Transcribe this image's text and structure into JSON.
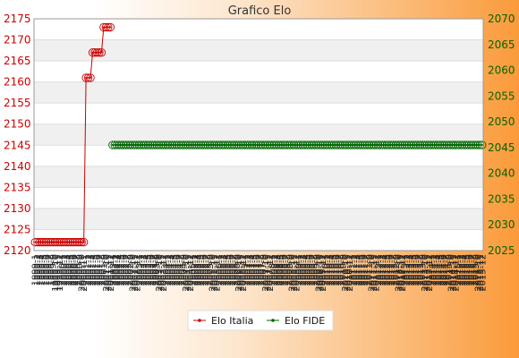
{
  "chart_data": {
    "type": "line",
    "title": "Grafico Elo",
    "xlabel": "",
    "ylabel": "",
    "grid": true,
    "legend_position": "bottom",
    "y_left": {
      "range": [
        2120,
        2175
      ],
      "ticks": [
        "2120",
        "2125",
        "2130",
        "2135",
        "2140",
        "2145",
        "2150",
        "2155",
        "2160",
        "2165",
        "2170",
        "2175"
      ],
      "color": "#cc0000"
    },
    "y_right": {
      "range": [
        2025,
        2070
      ],
      "ticks": [
        "2025",
        "2030",
        "2035",
        "2040",
        "2045",
        "2050",
        "2055",
        "2060",
        "2065",
        "2070"
      ],
      "color": "#006600"
    },
    "categories": [
      "1999-1",
      "1999-2",
      "1999-3",
      "1999-4",
      "1999-5",
      "1999-6",
      "1999-7",
      "1999-8",
      "1999-9",
      "1999-10",
      "1999-11",
      "1999-12",
      "2000-1",
      "2000-2",
      "2000-3",
      "2000-4",
      "2000-5",
      "2000-6",
      "2000-7",
      "2000-8",
      "2000-9",
      "2000-10",
      "2000-11",
      "2001-1",
      "2001-2",
      "2001-3",
      "2001-4",
      "2001-5",
      "2001-6",
      "2001-7",
      "2001-8",
      "2001-9",
      "2001-10",
      "2001-11",
      "2001-12",
      "2002-1",
      "2002-2",
      "2002-3",
      "2002-4",
      "2002-5",
      "2002-6",
      "2002-7",
      "2002-8",
      "2002-9",
      "2002-10",
      "2002-11",
      "2002-12",
      "2003-1",
      "2003-2",
      "2003-3",
      "2003-4",
      "2003-5",
      "2003-6",
      "2003-7",
      "2003-8",
      "2003-9",
      "2003-10",
      "2003-11",
      "2003-12",
      "2004-1",
      "2004-2",
      "2004-3",
      "2004-4",
      "2004-5",
      "2004-6",
      "2004-7",
      "2004-8",
      "2004-9",
      "2004-10",
      "2004-11",
      "2004-12",
      "2005-1",
      "2005-2",
      "2005-3",
      "2005-4",
      "2005-5",
      "2005-6",
      "2005-7",
      "2005-8",
      "2005-9",
      "2005-10",
      "2005-11",
      "2005-12",
      "2006-1",
      "2006-2",
      "2006-3",
      "2006-4",
      "2006-5",
      "2006-6",
      "2006-7",
      "2006-8",
      "2006-9",
      "2006-10",
      "2006-11",
      "2006-12",
      "2007-1",
      "2007-2",
      "2007-3",
      "2007-4",
      "2007-5",
      "2007-6",
      "2007-7",
      "2007-8",
      "2007-9",
      "2007-10",
      "2007-11",
      "2007-12",
      "2008-1",
      "2008-2",
      "2008-3",
      "2008-4",
      "2008-5",
      "2008-6",
      "2008-7",
      "2008-8",
      "2008-9",
      "2008-10",
      "2008-11",
      "2008-12",
      "2009-1",
      "2009-2",
      "2009-3",
      "2009-4",
      "2009-5",
      "2009-6",
      "2009-7",
      "2009-8",
      "2009-9",
      "2009-10",
      "2009-11",
      "2009-12",
      "2010-1",
      "2010-2",
      "2010-3",
      "2010-4",
      "2010-5",
      "2010-6",
      "2010-7",
      "2010-8",
      "2010-9",
      "2010-10",
      "2010-11",
      "2010-12",
      "2011-1",
      "2011-2",
      "2011-3",
      "2011-4",
      "2011-5",
      "2011-6",
      "2011-7",
      "2011-8",
      "2011-9",
      "2011-10",
      "2011-11",
      "2011-12",
      "2012-1",
      "2012-2",
      "2012-3",
      "2012-4",
      "2012-5",
      "2012-6",
      "2012-7",
      "2012-8",
      "2012-9",
      "2012-10",
      "2012-11",
      "2012-12",
      "2013-1",
      "2013-2",
      "2013-3",
      "2013-4",
      "2013-5",
      "2013-6",
      "2013-7",
      "2013-8",
      "2013-9",
      "2013-10",
      "2013-11",
      "2013-12",
      "2014-1",
      "2014-2",
      "2014-3",
      "2014-4",
      "2014-5",
      "2014-6",
      "2014-7",
      "2014-8",
      "2014-9",
      "2014-10",
      "2014-11",
      "2014-12",
      "2015-1",
      "2015-2",
      "2015-3",
      "2015-4",
      "2015-5",
      "2015-6",
      "2015-7",
      "2015-8",
      "2015-9",
      "2015-10",
      "2015-11",
      "2015-12"
    ],
    "series": [
      {
        "name": "Elo Italia",
        "axis": "left",
        "color": "#cc0000",
        "values": [
          2122,
          2122,
          2122,
          2122,
          2122,
          2122,
          2122,
          2122,
          2122,
          2122,
          2122,
          2122,
          2122,
          2122,
          2122,
          2122,
          2122,
          2122,
          2122,
          2122,
          2122,
          2122,
          2122,
          2161,
          2161,
          2161,
          2167,
          2167,
          2167,
          2167,
          2167,
          2173,
          2173,
          2173,
          2173,
          null,
          null,
          null,
          null,
          null,
          null,
          null,
          null,
          null,
          null,
          null,
          null,
          null,
          null,
          null,
          null,
          null,
          null,
          null,
          null,
          null,
          null,
          null,
          null,
          null,
          null,
          null,
          null,
          null,
          null,
          null,
          null,
          null,
          null,
          null,
          null,
          null,
          null,
          null,
          null,
          null,
          null,
          null,
          null,
          null,
          null,
          null,
          null,
          null,
          null,
          null,
          null,
          null,
          null,
          null,
          null,
          null,
          null,
          null,
          null,
          null,
          null,
          null,
          null,
          null,
          null,
          null,
          null,
          null,
          null,
          null,
          null,
          null,
          null,
          null,
          null,
          null,
          null,
          null,
          null,
          null,
          null,
          null,
          null,
          null,
          null,
          null,
          null,
          null,
          null,
          null,
          null,
          null,
          null,
          null,
          null,
          null,
          null,
          null,
          null,
          null,
          null,
          null,
          null,
          null,
          null,
          null,
          null,
          null,
          null,
          null,
          null,
          null,
          null,
          null,
          null,
          null,
          null,
          null,
          null,
          null,
          null,
          null,
          null,
          null,
          null,
          null,
          null,
          null,
          null,
          null,
          null,
          null,
          null,
          null,
          null,
          null,
          null,
          null,
          null,
          null,
          null,
          null,
          null,
          null,
          null,
          null,
          null,
          null,
          null,
          null,
          null,
          null,
          null,
          null,
          null,
          null,
          null,
          null,
          null,
          null,
          null,
          null,
          null,
          null,
          null,
          null,
          null
        ]
      },
      {
        "name": "Elo FIDE",
        "axis": "right",
        "color": "#006600",
        "values": [
          null,
          null,
          null,
          null,
          null,
          null,
          null,
          null,
          null,
          null,
          null,
          null,
          null,
          null,
          null,
          null,
          null,
          null,
          null,
          null,
          null,
          null,
          null,
          null,
          null,
          null,
          null,
          null,
          null,
          null,
          null,
          null,
          null,
          null,
          null,
          2045.5,
          2045.5,
          2045.5,
          2045.5,
          2045.5,
          2045.5,
          2045.5,
          2045.5,
          2045.5,
          2045.5,
          2045.5,
          2045.5,
          2045.5,
          2045.5,
          2045.5,
          2045.5,
          2045.5,
          2045.5,
          2045.5,
          2045.5,
          2045.5,
          2045.5,
          2045.5,
          2045.5,
          2045.5,
          2045.5,
          2045.5,
          2045.5,
          2045.5,
          2045.5,
          2045.5,
          2045.5,
          2045.5,
          2045.5,
          2045.5,
          2045.5,
          2045.5,
          2045.5,
          2045.5,
          2045.5,
          2045.5,
          2045.5,
          2045.5,
          2045.5,
          2045.5,
          2045.5,
          2045.5,
          2045.5,
          2045.5,
          2045.5,
          2045.5,
          2045.5,
          2045.5,
          2045.5,
          2045.5,
          2045.5,
          2045.5,
          2045.5,
          2045.5,
          2045.5,
          2045.5,
          2045.5,
          2045.5,
          2045.5,
          2045.5,
          2045.5,
          2045.5,
          2045.5,
          2045.5,
          2045.5,
          2045.5,
          2045.5,
          2045.5,
          2045.5,
          2045.5,
          2045.5,
          2045.5,
          2045.5,
          2045.5,
          2045.5,
          2045.5,
          2045.5,
          2045.5,
          2045.5,
          2045.5,
          2045.5,
          2045.5,
          2045.5,
          2045.5,
          2045.5,
          2045.5,
          2045.5,
          2045.5,
          2045.5,
          2045.5,
          2045.5,
          2045.5,
          2045.5,
          2045.5,
          2045.5,
          2045.5,
          2045.5,
          2045.5,
          2045.5,
          2045.5,
          2045.5,
          2045.5,
          2045.5,
          2045.5,
          2045.5,
          2045.5,
          2045.5,
          2045.5,
          2045.5,
          2045.5,
          2045.5,
          2045.5,
          2045.5,
          2045.5,
          2045.5,
          2045.5,
          2045.5,
          2045.5,
          2045.5,
          2045.5,
          2045.5,
          2045.5,
          2045.5,
          2045.5,
          2045.5,
          2045.5,
          2045.5,
          2045.5,
          2045.5,
          2045.5,
          2045.5,
          2045.5,
          2045.5,
          2045.5,
          2045.5,
          2045.5,
          2045.5,
          2045.5,
          2045.5,
          2045.5,
          2045.5,
          2045.5,
          2045.5,
          2045.5,
          2045.5,
          2045.5,
          2045.5,
          2045.5,
          2045.5,
          2045.5,
          2045.5,
          2045.5,
          2045.5,
          2045.5,
          2045.5,
          2045.5,
          2045.5,
          2045.5,
          2045.5,
          2045.5,
          2045.5,
          2045.5,
          2045.5
        ]
      }
    ]
  }
}
